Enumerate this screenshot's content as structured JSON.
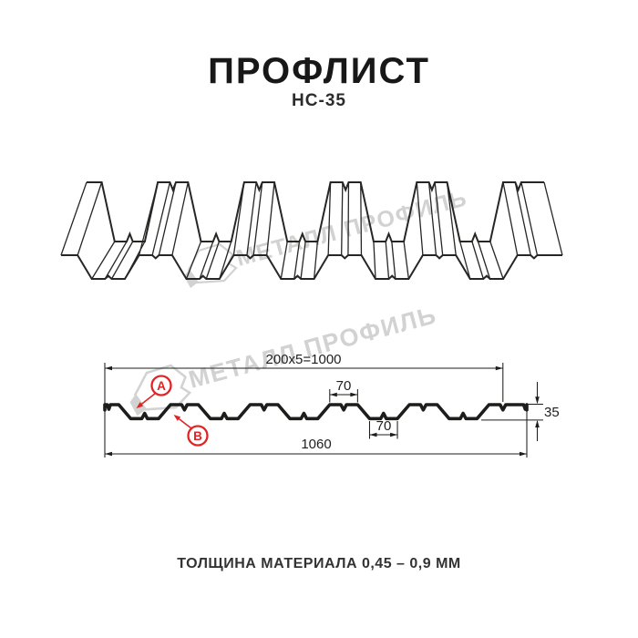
{
  "header": {
    "title": "ПРОФЛИСТ",
    "subtitle": "НС-35"
  },
  "watermark": {
    "text": "МЕТАЛЛ ПРОФИЛЬ"
  },
  "cross_section": {
    "dim_top": "200x5=1000",
    "dim_crest": "70",
    "dim_valley": "70",
    "dim_total": "1060",
    "dim_height": "35",
    "label_a": "A",
    "label_b": "B"
  },
  "footer": {
    "thickness": "ТОЛЩИНА МАТЕРИАЛА 0,45 – 0,9 ММ"
  },
  "colors": {
    "line": "#1d1d1b",
    "accent_red": "#e02424",
    "watermark": "#d2d2d2"
  }
}
